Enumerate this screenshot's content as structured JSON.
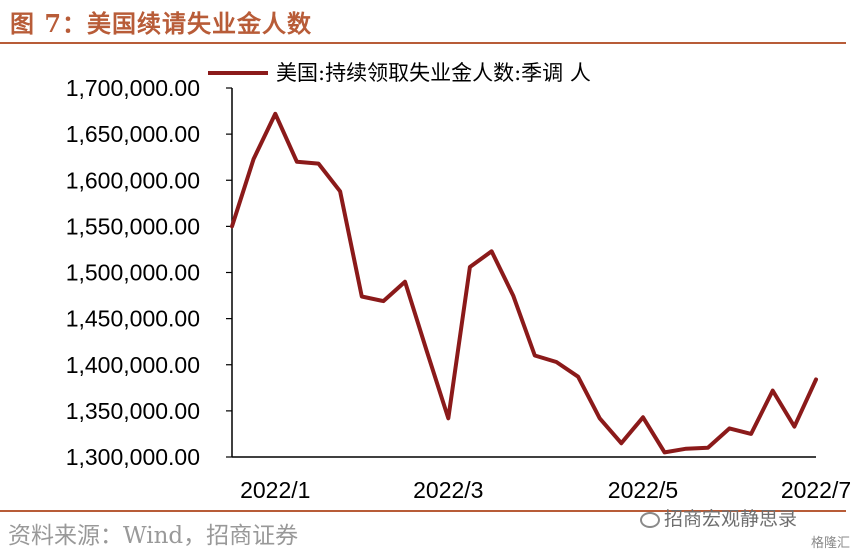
{
  "figure": {
    "title": "图 7：美国续请失业金人数",
    "source": "资料来源：Wind，招商证券",
    "watermark": "招商宏观静思录",
    "brand": "格隆汇"
  },
  "colors": {
    "accent": "#b85c38",
    "line": "#8b1a1a",
    "source_text": "#999999"
  },
  "chart_data": {
    "type": "line",
    "title": "",
    "xlabel": "",
    "ylabel": "",
    "legend": "top-right",
    "grid": false,
    "ylim": [
      1300000,
      1700000
    ],
    "yticks": [
      "1,300,000.00",
      "1,350,000.00",
      "1,400,000.00",
      "1,450,000.00",
      "1,500,000.00",
      "1,550,000.00",
      "1,600,000.00",
      "1,650,000.00",
      "1,700,000.00"
    ],
    "ytick_values": [
      1300000,
      1350000,
      1400000,
      1450000,
      1500000,
      1550000,
      1600000,
      1650000,
      1700000
    ],
    "xticks": [
      "2022/1",
      "2022/3",
      "2022/5",
      "2022/7"
    ],
    "xtick_indices": [
      2,
      10,
      19,
      27
    ],
    "series": [
      {
        "name": "美国:持续领取失业金人数:季调 人",
        "values": [
          1550000,
          1623000,
          1672000,
          1620000,
          1618000,
          1588000,
          1474000,
          1469000,
          1490000,
          1415000,
          1342000,
          1506000,
          1523000,
          1475000,
          1410000,
          1403000,
          1387000,
          1342000,
          1315000,
          1343000,
          1305000,
          1309000,
          1310000,
          1331000,
          1325000,
          1372000,
          1333000,
          1384000
        ]
      }
    ]
  }
}
